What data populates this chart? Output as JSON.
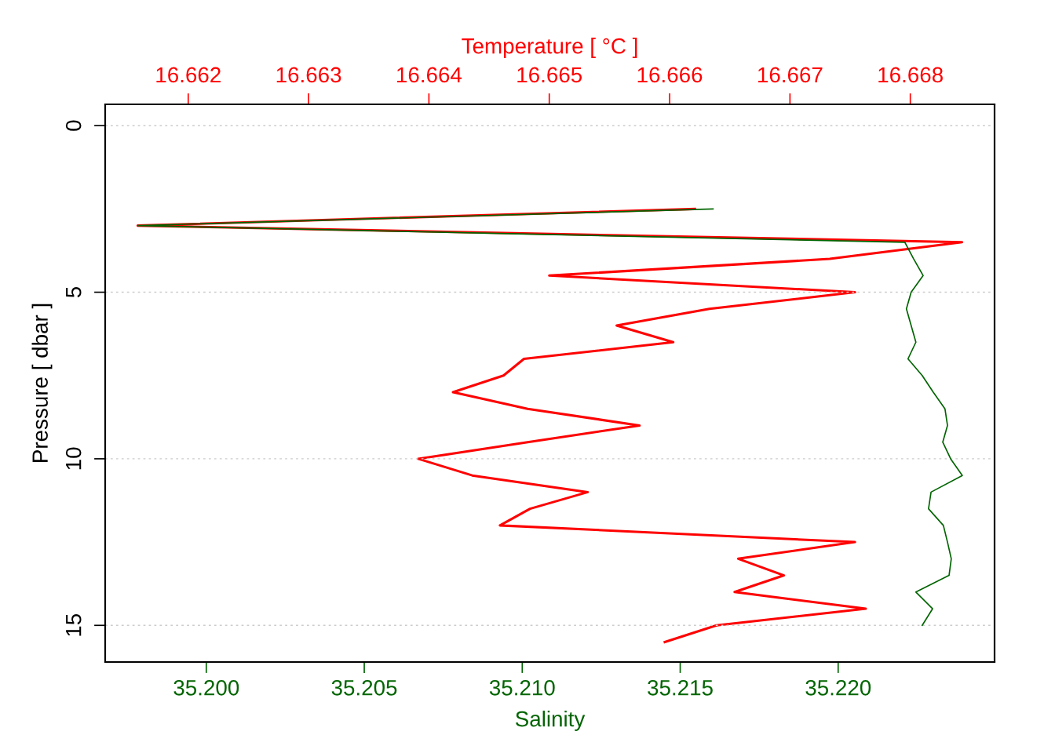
{
  "chart_data": {
    "type": "line",
    "xlabel": "Salinity",
    "x2label": "Temperature [ °C ]",
    "ylabel": "Pressure [ dbar ]",
    "xlim": [
      35.1968,
      35.22495
    ],
    "xticks": [
      {
        "value": 35.2,
        "label": "35.200"
      },
      {
        "value": 35.205,
        "label": "35.205"
      },
      {
        "value": 35.21,
        "label": "35.210"
      },
      {
        "value": 35.215,
        "label": "35.215"
      },
      {
        "value": 35.22,
        "label": "35.220"
      }
    ],
    "x2lim": [
      16.66131,
      16.6687
    ],
    "x2ticks": [
      16.662,
      16.663,
      16.664,
      16.665,
      16.666,
      16.667,
      16.668
    ],
    "ylim": [
      16.1,
      -0.64
    ],
    "yticks": [
      0,
      5,
      10,
      15
    ],
    "grid": "y",
    "legend": false,
    "marker": "none",
    "line_style": "solid",
    "series": [
      {
        "axis": "x2",
        "color": "#ff0000",
        "x": [
          16.66621,
          16.66158,
          16.66843,
          16.66733,
          16.665,
          16.66754,
          16.66633,
          16.66556,
          16.66603,
          16.66479,
          16.66462,
          16.6642,
          16.66482,
          16.66575,
          16.66482,
          16.66391,
          16.66436,
          16.66532,
          16.66484,
          16.66459,
          16.66754,
          16.66657,
          16.66695,
          16.66654,
          16.66763,
          16.66639,
          16.66596
        ],
        "values": [
          2.5,
          3,
          3.5,
          4,
          4.5,
          5,
          5.5,
          6,
          6.5,
          7,
          7.5,
          8,
          8.5,
          9,
          9.5,
          10,
          10.5,
          11,
          11.5,
          12,
          12.5,
          13,
          13.5,
          14,
          14.5,
          15,
          15.5
        ]
      },
      {
        "color": "#006400",
        "x": [
          35.21604,
          35.19784,
          35.22211,
          35.22239,
          35.22269,
          35.22231,
          35.22216,
          35.22231,
          35.22246,
          35.22221,
          35.22266,
          35.22301,
          35.22338,
          35.22346,
          35.22331,
          35.22356,
          35.22393,
          35.22294,
          35.22286,
          35.22333,
          35.22346,
          35.22358,
          35.22351,
          35.22246,
          35.22299,
          35.22266
        ],
        "values": [
          2.5,
          3,
          3.5,
          4,
          4.5,
          5,
          5.5,
          6,
          6.5,
          7,
          7.5,
          8,
          8.5,
          9,
          9.5,
          10,
          10.5,
          11,
          11.5,
          12,
          12.5,
          13,
          13.5,
          14,
          14.5,
          15
        ]
      }
    ]
  }
}
